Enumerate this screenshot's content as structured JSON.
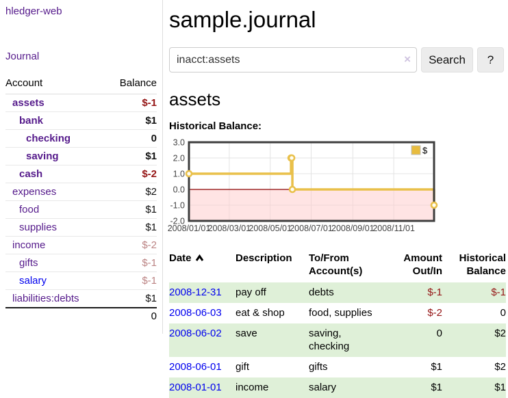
{
  "app": {
    "brand": "hledger-web",
    "journal_link": "Journal"
  },
  "sidebar": {
    "accounts_header": {
      "account": "Account",
      "balance": "Balance"
    },
    "accounts": [
      {
        "name": "assets",
        "depth": 1,
        "bold": true,
        "balance": "$-1",
        "balance_style": "neg-strong",
        "link": "purple"
      },
      {
        "name": "bank",
        "depth": 2,
        "bold": true,
        "balance": "$1",
        "balance_style": "pos",
        "link": "purple"
      },
      {
        "name": "checking",
        "depth": 3,
        "bold": true,
        "balance": "0",
        "balance_style": "pos",
        "link": "purple"
      },
      {
        "name": "saving",
        "depth": 3,
        "bold": true,
        "balance": "$1",
        "balance_style": "pos",
        "link": "purple"
      },
      {
        "name": "cash",
        "depth": 2,
        "bold": true,
        "balance": "$-2",
        "balance_style": "neg-strong",
        "link": "purple"
      },
      {
        "name": "expenses",
        "depth": 1,
        "bold": false,
        "balance": "$2",
        "balance_style": "pos",
        "link": "purple"
      },
      {
        "name": "food",
        "depth": 2,
        "bold": false,
        "balance": "$1",
        "balance_style": "pos",
        "link": "purple"
      },
      {
        "name": "supplies",
        "depth": 2,
        "bold": false,
        "balance": "$1",
        "balance_style": "pos",
        "link": "purple"
      },
      {
        "name": "income",
        "depth": 1,
        "bold": false,
        "balance": "$-2",
        "balance_style": "neg-muted",
        "link": "purple"
      },
      {
        "name": "gifts",
        "depth": 2,
        "bold": false,
        "balance": "$-1",
        "balance_style": "neg-muted",
        "link": "purple"
      },
      {
        "name": "salary",
        "depth": 2,
        "bold": false,
        "balance": "$-1",
        "balance_style": "neg-muted",
        "link": "blue"
      },
      {
        "name": "liabilities:debts",
        "depth": 1,
        "bold": false,
        "balance": "$1",
        "balance_style": "pos",
        "link": "purple"
      }
    ],
    "total": "0"
  },
  "header": {
    "title": "sample.journal"
  },
  "search": {
    "value": "inacct:assets",
    "clear_icon": "×",
    "button": "Search",
    "help_button": "?"
  },
  "account_page": {
    "title": "assets",
    "chart_label": "Historical Balance:"
  },
  "chart_data": {
    "type": "line",
    "step": true,
    "title": "Historical Balance",
    "series": [
      {
        "name": "$",
        "color": "#e9c04a",
        "points": [
          [
            "2008-01-01",
            1
          ],
          [
            "2008-06-01",
            2
          ],
          [
            "2008-06-02",
            2
          ],
          [
            "2008-06-03",
            0
          ],
          [
            "2008-12-31",
            -1
          ]
        ]
      }
    ],
    "xlim": [
      "2008-01-01",
      "2008-12-31"
    ],
    "ylim": [
      -2,
      3
    ],
    "x_ticks": [
      {
        "date": "2008-01-01",
        "label": "2008/01/01"
      },
      {
        "date": "2008-03-01",
        "label": "2008/03/01"
      },
      {
        "date": "2008-05-01",
        "label": "2008/05/01"
      },
      {
        "date": "2008-07-01",
        "label": "2008/07/01"
      },
      {
        "date": "2008-09-01",
        "label": "2008/09/01"
      },
      {
        "date": "2008-11-01",
        "label": "2008/11/01"
      }
    ],
    "y_ticks": [
      "3.0",
      "2.0",
      "1.0",
      "0.0",
      "-1.0",
      "-2.0"
    ],
    "grid": true,
    "legend_position": "top-right",
    "colors": {
      "negative_zone": "rgba(255,205,205,0.55)",
      "zero_line": "#8b0000",
      "grid_line": "#e3e3e3",
      "plot_border": "#3e3e3e",
      "tick_label": "#444444",
      "legend_box_fill": "#e8bc3e",
      "legend_box_border": "#bbbbbb"
    }
  },
  "register_table": {
    "columns": {
      "date": "Date",
      "description": "Description",
      "accounts": "To/From Account(s)",
      "amount": "Amount Out/In",
      "balance": "Historical Balance"
    },
    "sort": {
      "column": "date",
      "direction": "asc"
    },
    "rows": [
      {
        "date": "2008-12-31",
        "description": "pay off",
        "accounts": "debts",
        "amount": "$-1",
        "amount_neg": true,
        "balance": "$-1",
        "balance_neg": true
      },
      {
        "date": "2008-06-03",
        "description": "eat & shop",
        "accounts": "food, supplies",
        "amount": "$-2",
        "amount_neg": true,
        "balance": "0",
        "balance_neg": false
      },
      {
        "date": "2008-06-02",
        "description": "save",
        "accounts": "saving, checking",
        "amount": "0",
        "amount_neg": false,
        "balance": "$2",
        "balance_neg": false
      },
      {
        "date": "2008-06-01",
        "description": "gift",
        "accounts": "gifts",
        "amount": "$1",
        "amount_neg": false,
        "balance": "$2",
        "balance_neg": false
      },
      {
        "date": "2008-01-01",
        "description": "income",
        "accounts": "salary",
        "amount": "$1",
        "amount_neg": false,
        "balance": "$1",
        "balance_neg": false
      }
    ]
  }
}
